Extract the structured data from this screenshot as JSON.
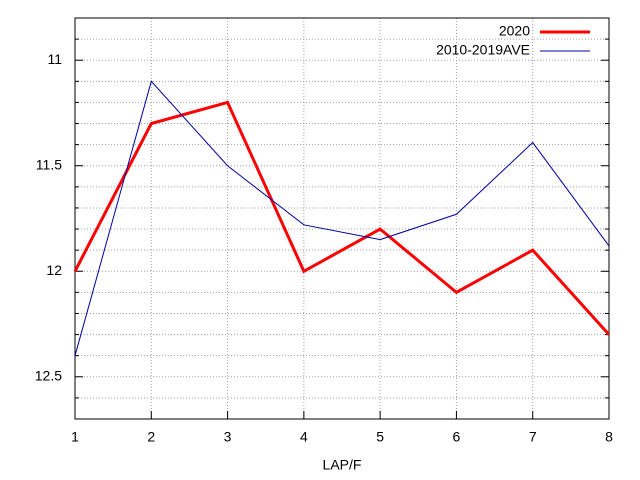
{
  "chart_data": {
    "type": "line",
    "xlabel": "LAP/F",
    "x": [
      1,
      2,
      3,
      4,
      5,
      6,
      7,
      8
    ],
    "xlim": [
      1,
      8
    ],
    "xticks": [
      1,
      2,
      3,
      4,
      5,
      6,
      7,
      8
    ],
    "ylim": [
      10.8,
      12.7
    ],
    "y_reversed": true,
    "yticks": [
      11,
      11.5,
      12,
      12.5
    ],
    "y_minor_ticks": [
      10.9,
      11.1,
      11.2,
      11.3,
      11.4,
      11.6,
      11.7,
      11.8,
      11.9,
      12.1,
      12.2,
      12.3,
      12.4,
      12.6
    ],
    "grid": true,
    "legend": "top-right",
    "series": [
      {
        "name": "2020",
        "color": "#ff0000",
        "width": 3,
        "values": [
          12.0,
          11.3,
          11.2,
          12.0,
          11.8,
          12.1,
          11.9,
          12.3
        ]
      },
      {
        "name": "2010-2019AVE",
        "color": "#0000a0",
        "width": 1,
        "values": [
          12.4,
          11.1,
          11.5,
          11.78,
          11.85,
          11.73,
          11.39,
          11.88
        ]
      }
    ]
  }
}
